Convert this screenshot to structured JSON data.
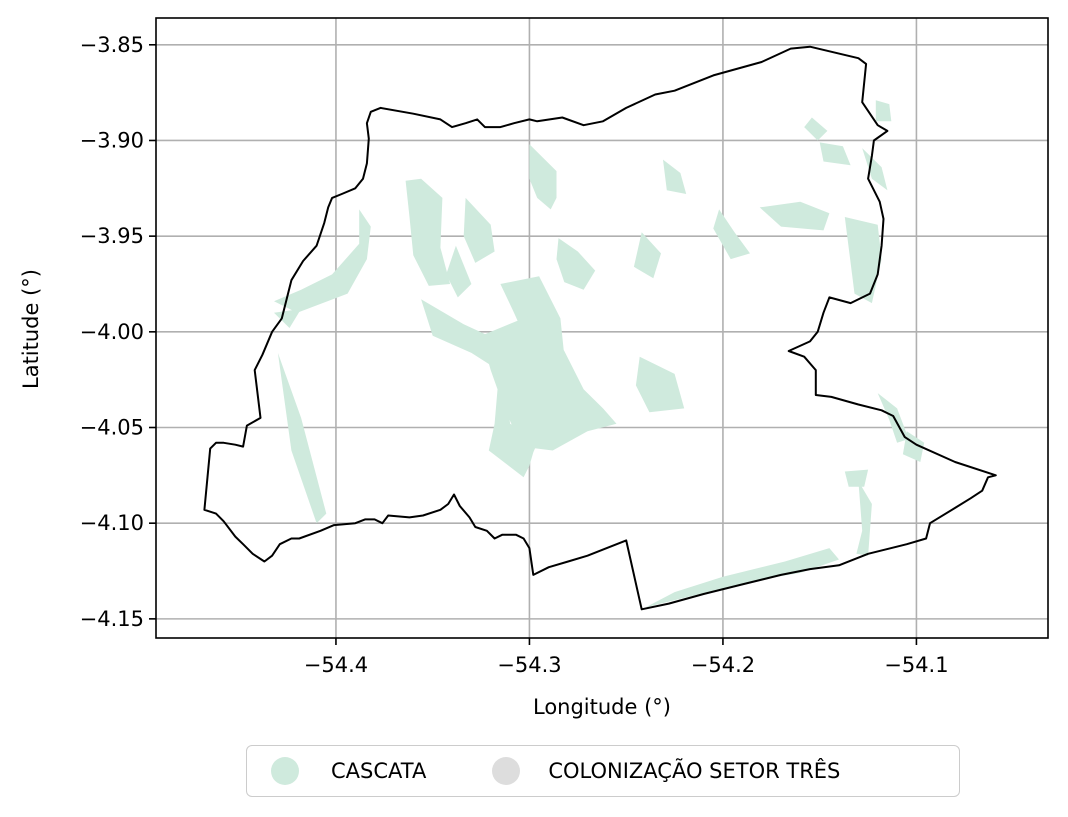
{
  "chart_data": {
    "type": "map",
    "xlabel": "Longitude (°)",
    "ylabel": "Latitude (°)",
    "xlim": [
      -54.493,
      -54.032
    ],
    "ylim": [
      -4.16,
      -3.836
    ],
    "grid": true,
    "x_ticks": [
      -54.4,
      -54.3,
      -54.2,
      -54.1
    ],
    "x_tick_labels": [
      "−54.4",
      "−54.3",
      "−54.2",
      "−54.1"
    ],
    "y_ticks": [
      -3.85,
      -3.9,
      -3.95,
      -4.0,
      -4.05,
      -4.1,
      -4.15
    ],
    "y_tick_labels": [
      "−3.85",
      "−3.90",
      "−3.95",
      "−4.00",
      "−4.05",
      "−4.10",
      "−4.15"
    ],
    "boundary": [
      [
        -54.468,
        -4.093
      ],
      [
        -54.462,
        -4.095
      ],
      [
        -54.458,
        -4.099
      ],
      [
        -54.452,
        -4.107
      ],
      [
        -54.448,
        -4.111
      ],
      [
        -54.443,
        -4.116
      ],
      [
        -54.437,
        -4.12
      ],
      [
        -54.433,
        -4.117
      ],
      [
        -54.429,
        -4.111
      ],
      [
        -54.423,
        -4.108
      ],
      [
        -54.419,
        -4.108
      ],
      [
        -54.408,
        -4.104
      ],
      [
        -54.401,
        -4.101
      ],
      [
        -54.39,
        -4.1
      ],
      [
        -54.385,
        -4.098
      ],
      [
        -54.38,
        -4.098
      ],
      [
        -54.376,
        -4.1
      ],
      [
        -54.373,
        -4.096
      ],
      [
        -54.362,
        -4.097
      ],
      [
        -54.355,
        -4.096
      ],
      [
        -54.346,
        -4.093
      ],
      [
        -54.342,
        -4.09
      ],
      [
        -54.339,
        -4.085
      ],
      [
        -54.336,
        -4.091
      ],
      [
        -54.331,
        -4.097
      ],
      [
        -54.328,
        -4.102
      ],
      [
        -54.322,
        -4.104
      ],
      [
        -54.318,
        -4.108
      ],
      [
        -54.314,
        -4.106
      ],
      [
        -54.307,
        -4.106
      ],
      [
        -54.303,
        -4.108
      ],
      [
        -54.3,
        -4.113
      ],
      [
        -54.298,
        -4.127
      ],
      [
        -54.29,
        -4.123
      ],
      [
        -54.28,
        -4.12
      ],
      [
        -54.27,
        -4.117
      ],
      [
        -54.26,
        -4.113
      ],
      [
        -54.25,
        -4.109
      ],
      [
        -54.242,
        -4.145
      ],
      [
        -54.228,
        -4.142
      ],
      [
        -54.21,
        -4.137
      ],
      [
        -54.19,
        -4.132
      ],
      [
        -54.17,
        -4.127
      ],
      [
        -54.155,
        -4.124
      ],
      [
        -54.14,
        -4.122
      ],
      [
        -54.125,
        -4.116
      ],
      [
        -54.105,
        -4.111
      ],
      [
        -54.095,
        -4.108
      ],
      [
        -54.093,
        -4.1
      ],
      [
        -54.08,
        -4.092
      ],
      [
        -54.072,
        -4.087
      ],
      [
        -54.066,
        -4.083
      ],
      [
        -54.063,
        -4.076
      ],
      [
        -54.059,
        -4.075
      ],
      [
        -54.08,
        -4.068
      ],
      [
        -54.1,
        -4.059
      ],
      [
        -54.106,
        -4.055
      ],
      [
        -54.112,
        -4.044
      ],
      [
        -54.118,
        -4.041
      ],
      [
        -54.13,
        -4.038
      ],
      [
        -54.144,
        -4.034
      ],
      [
        -54.152,
        -4.033
      ],
      [
        -54.152,
        -4.02
      ],
      [
        -54.158,
        -4.013
      ],
      [
        -54.166,
        -4.01
      ],
      [
        -54.155,
        -4.005
      ],
      [
        -54.151,
        -4.0
      ],
      [
        -54.148,
        -3.99
      ],
      [
        -54.145,
        -3.982
      ],
      [
        -54.134,
        -3.985
      ],
      [
        -54.124,
        -3.98
      ],
      [
        -54.12,
        -3.97
      ],
      [
        -54.118,
        -3.955
      ],
      [
        -54.117,
        -3.941
      ],
      [
        -54.119,
        -3.932
      ],
      [
        -54.125,
        -3.92
      ],
      [
        -54.123,
        -3.908
      ],
      [
        -54.122,
        -3.9
      ],
      [
        -54.115,
        -3.895
      ],
      [
        -54.12,
        -3.892
      ],
      [
        -54.128,
        -3.88
      ],
      [
        -54.126,
        -3.86
      ],
      [
        -54.13,
        -3.857
      ],
      [
        -54.155,
        -3.851
      ],
      [
        -54.165,
        -3.852
      ],
      [
        -54.18,
        -3.859
      ],
      [
        -54.205,
        -3.866
      ],
      [
        -54.225,
        -3.874
      ],
      [
        -54.235,
        -3.876
      ],
      [
        -54.25,
        -3.883
      ],
      [
        -54.262,
        -3.89
      ],
      [
        -54.272,
        -3.892
      ],
      [
        -54.283,
        -3.888
      ],
      [
        -54.296,
        -3.89
      ],
      [
        -54.3,
        -3.889
      ],
      [
        -54.308,
        -3.891
      ],
      [
        -54.315,
        -3.893
      ],
      [
        -54.323,
        -3.893
      ],
      [
        -54.327,
        -3.889
      ],
      [
        -54.333,
        -3.891
      ],
      [
        -54.34,
        -3.893
      ],
      [
        -54.346,
        -3.889
      ],
      [
        -54.36,
        -3.886
      ],
      [
        -54.377,
        -3.883
      ],
      [
        -54.382,
        -3.885
      ],
      [
        -54.384,
        -3.891
      ],
      [
        -54.383,
        -3.899
      ],
      [
        -54.384,
        -3.912
      ],
      [
        -54.386,
        -3.92
      ],
      [
        -54.39,
        -3.925
      ],
      [
        -54.397,
        -3.928
      ],
      [
        -54.402,
        -3.93
      ],
      [
        -54.404,
        -3.935
      ],
      [
        -54.406,
        -3.943
      ],
      [
        -54.41,
        -3.955
      ],
      [
        -54.417,
        -3.963
      ],
      [
        -54.423,
        -3.973
      ],
      [
        -54.428,
        -3.993
      ],
      [
        -54.433,
        -4.0
      ],
      [
        -54.438,
        -4.012
      ],
      [
        -54.442,
        -4.02
      ],
      [
        -54.439,
        -4.045
      ],
      [
        -54.446,
        -4.049
      ],
      [
        -54.448,
        -4.06
      ],
      [
        -54.452,
        -4.059
      ],
      [
        -54.458,
        -4.058
      ],
      [
        -54.462,
        -4.058
      ],
      [
        -54.465,
        -4.061
      ],
      [
        -54.468,
        -4.093
      ]
    ],
    "cascata_areas": [
      [
        [
          -54.356,
          -3.983
        ],
        [
          -54.334,
          -3.996
        ],
        [
          -54.319,
          -4.003
        ],
        [
          -54.316,
          -4.024
        ],
        [
          -54.318,
          -4.048
        ],
        [
          -54.321,
          -4.062
        ],
        [
          -54.303,
          -4.076
        ],
        [
          -54.3,
          -4.07
        ],
        [
          -54.298,
          -4.063
        ],
        [
          -54.295,
          -4.056
        ],
        [
          -54.31,
          -4.048
        ],
        [
          -54.313,
          -4.022
        ],
        [
          -54.33,
          -4.011
        ],
        [
          -54.35,
          -4.002
        ],
        [
          -54.356,
          -3.983
        ]
      ],
      [
        [
          -54.315,
          -3.975
        ],
        [
          -54.295,
          -3.971
        ],
        [
          -54.284,
          -3.993
        ],
        [
          -54.281,
          -4.022
        ],
        [
          -54.278,
          -4.046
        ],
        [
          -54.285,
          -4.048
        ],
        [
          -54.29,
          -4.03
        ],
        [
          -54.3,
          -4.008
        ],
        [
          -54.308,
          -3.99
        ],
        [
          -54.315,
          -3.975
        ]
      ],
      [
        [
          -54.325,
          -4.002
        ],
        [
          -54.296,
          -3.99
        ],
        [
          -54.282,
          -4.01
        ],
        [
          -54.272,
          -4.03
        ],
        [
          -54.262,
          -4.04
        ],
        [
          -54.255,
          -4.048
        ],
        [
          -54.27,
          -4.052
        ],
        [
          -54.288,
          -4.062
        ],
        [
          -54.304,
          -4.06
        ],
        [
          -54.313,
          -4.04
        ],
        [
          -54.32,
          -4.02
        ],
        [
          -54.325,
          -4.002
        ]
      ],
      [
        [
          -54.243,
          -4.013
        ],
        [
          -54.225,
          -4.022
        ],
        [
          -54.22,
          -4.04
        ],
        [
          -54.238,
          -4.042
        ],
        [
          -54.245,
          -4.028
        ],
        [
          -54.243,
          -4.013
        ]
      ],
      [
        [
          -54.364,
          -3.921
        ],
        [
          -54.356,
          -3.92
        ],
        [
          -54.345,
          -3.93
        ],
        [
          -54.346,
          -3.956
        ],
        [
          -54.341,
          -3.975
        ],
        [
          -54.352,
          -3.976
        ],
        [
          -54.36,
          -3.96
        ],
        [
          -54.362,
          -3.94
        ],
        [
          -54.364,
          -3.921
        ]
      ],
      [
        [
          -54.388,
          -3.936
        ],
        [
          -54.388,
          -3.954
        ],
        [
          -54.402,
          -3.97
        ],
        [
          -54.418,
          -3.978
        ],
        [
          -54.432,
          -3.984
        ],
        [
          -54.42,
          -3.99
        ],
        [
          -54.394,
          -3.98
        ],
        [
          -54.384,
          -3.962
        ],
        [
          -54.382,
          -3.945
        ],
        [
          -54.388,
          -3.936
        ]
      ],
      [
        [
          -54.333,
          -3.93
        ],
        [
          -54.32,
          -3.944
        ],
        [
          -54.318,
          -3.958
        ],
        [
          -54.328,
          -3.964
        ],
        [
          -54.334,
          -3.95
        ],
        [
          -54.333,
          -3.93
        ]
      ],
      [
        [
          -54.3,
          -3.902
        ],
        [
          -54.294,
          -3.908
        ],
        [
          -54.286,
          -3.916
        ],
        [
          -54.286,
          -3.93
        ],
        [
          -54.289,
          -3.936
        ],
        [
          -54.296,
          -3.93
        ],
        [
          -54.3,
          -3.92
        ],
        [
          -54.3,
          -3.902
        ]
      ],
      [
        [
          -54.285,
          -3.951
        ],
        [
          -54.275,
          -3.958
        ],
        [
          -54.266,
          -3.968
        ],
        [
          -54.272,
          -3.978
        ],
        [
          -54.282,
          -3.974
        ],
        [
          -54.286,
          -3.962
        ],
        [
          -54.285,
          -3.951
        ]
      ],
      [
        [
          -54.242,
          -3.948
        ],
        [
          -54.232,
          -3.959
        ],
        [
          -54.236,
          -3.972
        ],
        [
          -54.246,
          -3.966
        ],
        [
          -54.242,
          -3.948
        ]
      ],
      [
        [
          -54.181,
          -3.935
        ],
        [
          -54.17,
          -3.945
        ],
        [
          -54.148,
          -3.947
        ],
        [
          -54.145,
          -3.938
        ],
        [
          -54.16,
          -3.932
        ],
        [
          -54.181,
          -3.935
        ]
      ],
      [
        [
          -54.231,
          -3.91
        ],
        [
          -54.222,
          -3.917
        ],
        [
          -54.219,
          -3.928
        ],
        [
          -54.229,
          -3.926
        ],
        [
          -54.231,
          -3.91
        ]
      ],
      [
        [
          -54.154,
          -3.888
        ],
        [
          -54.146,
          -3.895
        ],
        [
          -54.151,
          -3.9
        ],
        [
          -54.158,
          -3.893
        ],
        [
          -54.154,
          -3.888
        ]
      ],
      [
        [
          -54.128,
          -3.904
        ],
        [
          -54.118,
          -3.914
        ],
        [
          -54.115,
          -3.926
        ],
        [
          -54.123,
          -3.92
        ],
        [
          -54.128,
          -3.904
        ]
      ],
      [
        [
          -54.137,
          -3.94
        ],
        [
          -54.132,
          -3.98
        ],
        [
          -54.123,
          -3.985
        ],
        [
          -54.118,
          -3.962
        ],
        [
          -54.12,
          -3.944
        ],
        [
          -54.137,
          -3.94
        ]
      ],
      [
        [
          -54.114,
          -3.881
        ],
        [
          -54.121,
          -3.879
        ],
        [
          -54.121,
          -3.89
        ],
        [
          -54.113,
          -3.89
        ],
        [
          -54.114,
          -3.881
        ]
      ],
      [
        [
          -54.15,
          -3.901
        ],
        [
          -54.138,
          -3.903
        ],
        [
          -54.134,
          -3.913
        ],
        [
          -54.148,
          -3.911
        ],
        [
          -54.15,
          -3.901
        ]
      ],
      [
        [
          -54.202,
          -3.936
        ],
        [
          -54.194,
          -3.948
        ],
        [
          -54.186,
          -3.959
        ],
        [
          -54.196,
          -3.962
        ],
        [
          -54.205,
          -3.946
        ],
        [
          -54.202,
          -3.936
        ]
      ],
      [
        [
          -54.43,
          -4.011
        ],
        [
          -54.418,
          -4.045
        ],
        [
          -54.405,
          -4.095
        ],
        [
          -54.41,
          -4.1
        ],
        [
          -54.423,
          -4.062
        ],
        [
          -54.43,
          -4.011
        ]
      ],
      [
        [
          -54.432,
          -3.99
        ],
        [
          -54.418,
          -3.988
        ],
        [
          -54.424,
          -3.998
        ],
        [
          -54.432,
          -3.99
        ]
      ],
      [
        [
          -54.13,
          -4.078
        ],
        [
          -54.128,
          -4.104
        ],
        [
          -54.131,
          -4.116
        ],
        [
          -54.125,
          -4.117
        ],
        [
          -54.123,
          -4.09
        ],
        [
          -54.13,
          -4.078
        ]
      ],
      [
        [
          -54.137,
          -4.073
        ],
        [
          -54.125,
          -4.072
        ],
        [
          -54.127,
          -4.081
        ],
        [
          -54.135,
          -4.081
        ],
        [
          -54.137,
          -4.073
        ]
      ],
      [
        [
          -54.105,
          -4.052
        ],
        [
          -54.096,
          -4.058
        ],
        [
          -54.098,
          -4.068
        ],
        [
          -54.107,
          -4.064
        ],
        [
          -54.105,
          -4.052
        ]
      ],
      [
        [
          -54.24,
          -4.144
        ],
        [
          -54.212,
          -4.137
        ],
        [
          -54.184,
          -4.13
        ],
        [
          -54.16,
          -4.126
        ],
        [
          -54.14,
          -4.119
        ],
        [
          -54.145,
          -4.113
        ],
        [
          -54.168,
          -4.12
        ],
        [
          -54.2,
          -4.128
        ],
        [
          -54.225,
          -4.136
        ],
        [
          -54.24,
          -4.144
        ]
      ],
      [
        [
          -54.12,
          -4.032
        ],
        [
          -54.114,
          -4.046
        ],
        [
          -54.11,
          -4.058
        ],
        [
          -54.104,
          -4.056
        ],
        [
          -54.11,
          -4.04
        ],
        [
          -54.12,
          -4.032
        ]
      ],
      [
        [
          -54.338,
          -3.955
        ],
        [
          -54.33,
          -3.975
        ],
        [
          -54.337,
          -3.982
        ],
        [
          -54.343,
          -3.97
        ],
        [
          -54.338,
          -3.955
        ]
      ]
    ],
    "legend": [
      {
        "label": "CASCATA",
        "color": "#cfeadd"
      },
      {
        "label": "COLONIZAÇÃO SETOR TRÊS",
        "color": "#dddddd"
      }
    ],
    "legend_position": "below"
  }
}
